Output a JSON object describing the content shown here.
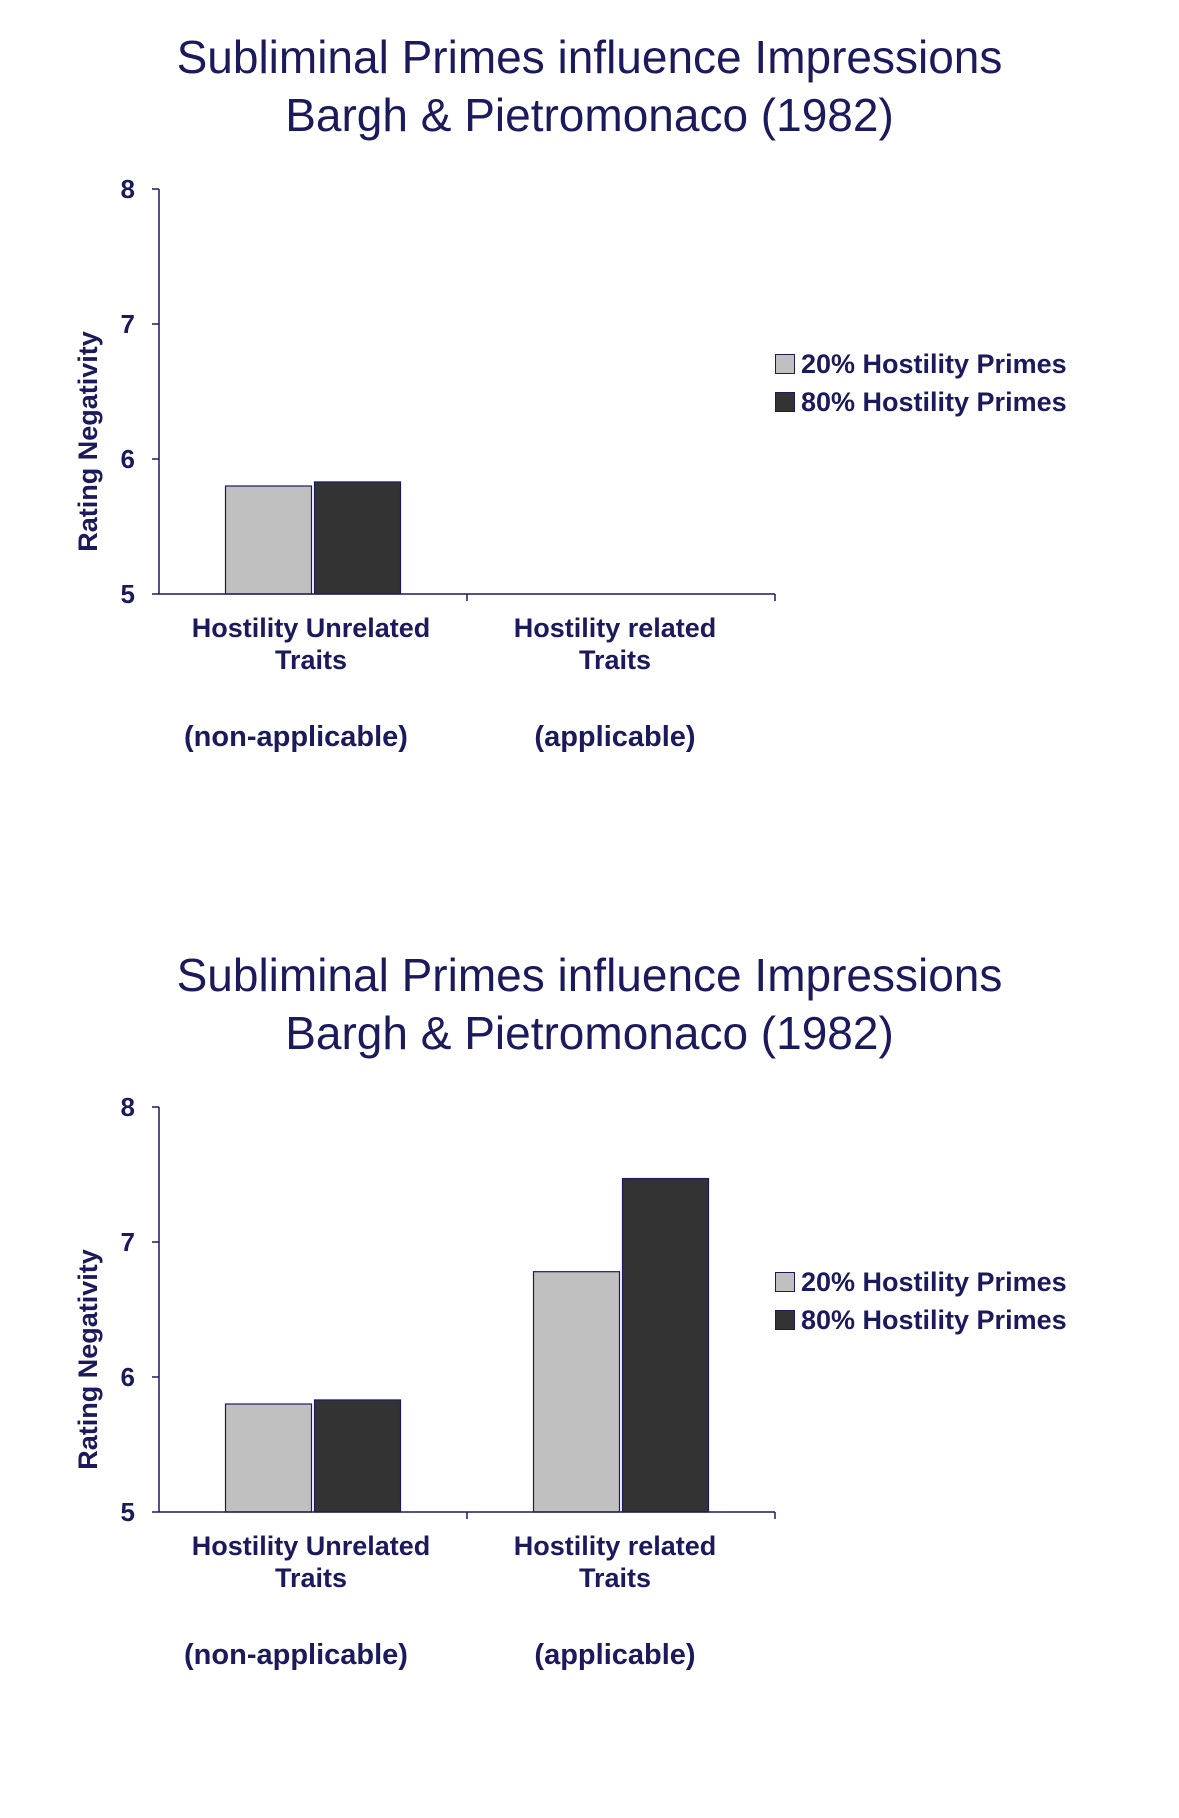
{
  "colors": {
    "text": "#1a1a5c",
    "series_light": "#c0c0c0",
    "series_dark": "#333333"
  },
  "chart_data": [
    {
      "type": "bar",
      "title": "Subliminal Primes influence Impressions",
      "subtitle": "Bargh & Pietromonaco (1982)",
      "ylabel": "Rating Negativity",
      "ylim": [
        5,
        8
      ],
      "yticks": [
        "5",
        "6",
        "7",
        "8"
      ],
      "categories": [
        {
          "line1": "Hostility Unrelated",
          "line2": "Traits",
          "note": "(non-applicable)"
        },
        {
          "line1": "Hostility related",
          "line2": "Traits",
          "note": "(applicable)"
        }
      ],
      "series": [
        {
          "name": "20% Hostility Primes",
          "values": [
            5.8,
            5.0
          ]
        },
        {
          "name": "80% Hostility Primes",
          "values": [
            5.83,
            5.0
          ]
        }
      ],
      "legend": "right"
    },
    {
      "type": "bar",
      "title": "Subliminal Primes influence Impressions",
      "subtitle": "Bargh & Pietromonaco (1982)",
      "ylabel": "Rating Negativity",
      "ylim": [
        5,
        8
      ],
      "yticks": [
        "5",
        "6",
        "7",
        "8"
      ],
      "categories": [
        {
          "line1": "Hostility Unrelated",
          "line2": "Traits",
          "note": "(non-applicable)"
        },
        {
          "line1": "Hostility related",
          "line2": "Traits",
          "note": "(applicable)"
        }
      ],
      "series": [
        {
          "name": "20% Hostility Primes",
          "values": [
            5.8,
            6.78
          ]
        },
        {
          "name": "80% Hostility Primes",
          "values": [
            5.83,
            7.47
          ]
        }
      ],
      "legend": "right"
    }
  ]
}
